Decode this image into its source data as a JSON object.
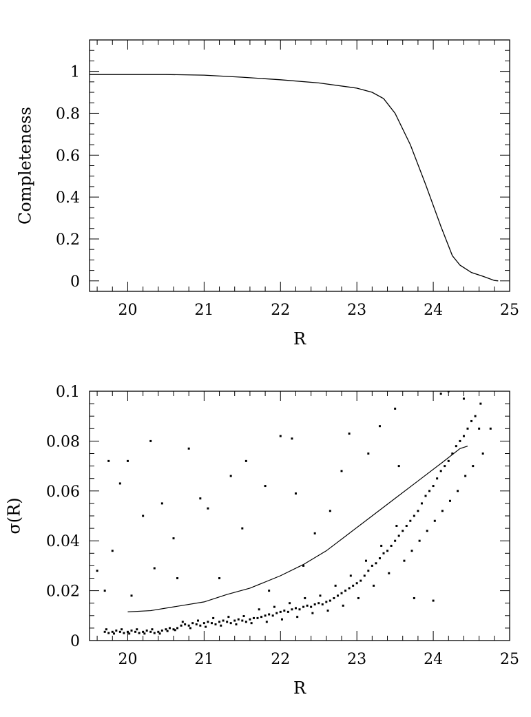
{
  "chart_data": [
    {
      "type": "line",
      "title": "",
      "xlabel": "R",
      "ylabel": "Completeness",
      "xlim": [
        19.5,
        25.0
      ],
      "ylim": [
        -0.05,
        1.15
      ],
      "xticks": [
        20,
        21,
        22,
        23,
        24,
        25
      ],
      "yticks": [
        0,
        0.2,
        0.4,
        0.6,
        0.8,
        1
      ],
      "xtick_labels": [
        "20",
        "21",
        "22",
        "23",
        "24",
        "25"
      ],
      "ytick_labels": [
        "0",
        "0.2",
        "0.4",
        "0.6",
        "0.8",
        "1"
      ],
      "grid": false,
      "series": [
        {
          "x": [
            19.5,
            20.0,
            20.5,
            21.0,
            21.5,
            22.0,
            22.5,
            23.0,
            23.2,
            23.35,
            23.5,
            23.7,
            23.9,
            24.1,
            24.25,
            24.35,
            24.5,
            24.65,
            24.8,
            24.85
          ],
          "y": [
            0.985,
            0.985,
            0.985,
            0.982,
            0.972,
            0.96,
            0.945,
            0.92,
            0.9,
            0.87,
            0.8,
            0.65,
            0.46,
            0.26,
            0.12,
            0.075,
            0.04,
            0.022,
            0.002,
            0.0
          ]
        }
      ]
    },
    {
      "type": "scatter",
      "title": "",
      "xlabel": "R",
      "ylabel": "σ(R)",
      "xlim": [
        19.5,
        25.0
      ],
      "ylim": [
        0.0,
        0.1
      ],
      "xticks": [
        20,
        21,
        22,
        23,
        24,
        25
      ],
      "yticks": [
        0,
        0.02,
        0.04,
        0.06,
        0.08,
        0.1
      ],
      "xtick_labels": [
        "20",
        "21",
        "22",
        "23",
        "24",
        "25"
      ],
      "ytick_labels": [
        "0",
        "0.02",
        "0.04",
        "0.06",
        "0.08",
        "0.1"
      ],
      "grid": false,
      "points": [
        [
          19.7,
          0.0035
        ],
        [
          19.75,
          0.003
        ],
        [
          19.8,
          0.0035
        ],
        [
          19.85,
          0.004
        ],
        [
          19.9,
          0.0035
        ],
        [
          19.95,
          0.003
        ],
        [
          20.0,
          0.0035
        ],
        [
          20.05,
          0.004
        ],
        [
          20.1,
          0.0035
        ],
        [
          20.15,
          0.003
        ],
        [
          20.2,
          0.0035
        ],
        [
          20.25,
          0.004
        ],
        [
          20.3,
          0.0035
        ],
        [
          20.35,
          0.003
        ],
        [
          20.4,
          0.0035
        ],
        [
          20.45,
          0.004
        ],
        [
          20.5,
          0.0045
        ],
        [
          20.55,
          0.005
        ],
        [
          20.6,
          0.0045
        ],
        [
          20.65,
          0.005
        ],
        [
          19.72,
          0.0045
        ],
        [
          19.82,
          0.0028
        ],
        [
          19.92,
          0.0045
        ],
        [
          20.02,
          0.0028
        ],
        [
          20.12,
          0.0045
        ],
        [
          20.22,
          0.0028
        ],
        [
          20.32,
          0.0045
        ],
        [
          20.42,
          0.0028
        ],
        [
          20.52,
          0.0038
        ],
        [
          20.62,
          0.0042
        ],
        [
          20.7,
          0.006
        ],
        [
          20.75,
          0.0065
        ],
        [
          20.8,
          0.006
        ],
        [
          20.85,
          0.007
        ],
        [
          20.9,
          0.0065
        ],
        [
          20.95,
          0.006
        ],
        [
          21.0,
          0.007
        ],
        [
          21.05,
          0.0075
        ],
        [
          21.1,
          0.007
        ],
        [
          21.15,
          0.0065
        ],
        [
          21.2,
          0.0075
        ],
        [
          21.25,
          0.008
        ],
        [
          21.3,
          0.0075
        ],
        [
          21.35,
          0.007
        ],
        [
          21.4,
          0.008
        ],
        [
          21.45,
          0.0085
        ],
        [
          21.5,
          0.008
        ],
        [
          21.55,
          0.0075
        ],
        [
          21.6,
          0.0085
        ],
        [
          21.65,
          0.009
        ],
        [
          20.72,
          0.0075
        ],
        [
          20.82,
          0.005
        ],
        [
          20.92,
          0.008
        ],
        [
          21.02,
          0.0055
        ],
        [
          21.12,
          0.009
        ],
        [
          21.22,
          0.006
        ],
        [
          21.32,
          0.0095
        ],
        [
          21.42,
          0.0065
        ],
        [
          21.52,
          0.0098
        ],
        [
          21.62,
          0.007
        ],
        [
          21.7,
          0.009
        ],
        [
          21.75,
          0.0095
        ],
        [
          21.8,
          0.01
        ],
        [
          21.85,
          0.0105
        ],
        [
          21.9,
          0.01
        ],
        [
          21.95,
          0.011
        ],
        [
          22.0,
          0.0115
        ],
        [
          22.05,
          0.012
        ],
        [
          22.1,
          0.0115
        ],
        [
          22.15,
          0.0125
        ],
        [
          22.2,
          0.013
        ],
        [
          22.25,
          0.0125
        ],
        [
          22.3,
          0.0135
        ],
        [
          22.35,
          0.014
        ],
        [
          22.4,
          0.0135
        ],
        [
          22.45,
          0.0145
        ],
        [
          22.5,
          0.015
        ],
        [
          22.55,
          0.0145
        ],
        [
          22.6,
          0.0155
        ],
        [
          22.65,
          0.016
        ],
        [
          21.72,
          0.0125
        ],
        [
          21.82,
          0.0075
        ],
        [
          21.92,
          0.0135
        ],
        [
          22.02,
          0.0085
        ],
        [
          22.12,
          0.015
        ],
        [
          22.22,
          0.0095
        ],
        [
          22.32,
          0.017
        ],
        [
          22.42,
          0.011
        ],
        [
          22.52,
          0.018
        ],
        [
          22.62,
          0.012
        ],
        [
          22.7,
          0.017
        ],
        [
          22.75,
          0.018
        ],
        [
          22.8,
          0.019
        ],
        [
          22.85,
          0.02
        ],
        [
          22.9,
          0.021
        ],
        [
          22.95,
          0.022
        ],
        [
          23.0,
          0.023
        ],
        [
          23.05,
          0.024
        ],
        [
          23.1,
          0.026
        ],
        [
          23.15,
          0.028
        ],
        [
          23.2,
          0.03
        ],
        [
          23.25,
          0.031
        ],
        [
          23.3,
          0.033
        ],
        [
          23.35,
          0.035
        ],
        [
          23.4,
          0.036
        ],
        [
          23.45,
          0.038
        ],
        [
          23.5,
          0.04
        ],
        [
          23.55,
          0.042
        ],
        [
          23.6,
          0.044
        ],
        [
          23.65,
          0.046
        ],
        [
          22.72,
          0.022
        ],
        [
          22.82,
          0.014
        ],
        [
          22.92,
          0.026
        ],
        [
          23.02,
          0.017
        ],
        [
          23.12,
          0.032
        ],
        [
          23.22,
          0.022
        ],
        [
          23.32,
          0.038
        ],
        [
          23.42,
          0.027
        ],
        [
          23.52,
          0.046
        ],
        [
          23.62,
          0.032
        ],
        [
          23.7,
          0.048
        ],
        [
          23.75,
          0.05
        ],
        [
          23.8,
          0.052
        ],
        [
          23.85,
          0.055
        ],
        [
          23.9,
          0.058
        ],
        [
          23.95,
          0.06
        ],
        [
          24.0,
          0.062
        ],
        [
          24.05,
          0.065
        ],
        [
          24.1,
          0.068
        ],
        [
          24.15,
          0.07
        ],
        [
          24.2,
          0.072
        ],
        [
          24.25,
          0.075
        ],
        [
          24.3,
          0.078
        ],
        [
          24.35,
          0.08
        ],
        [
          24.4,
          0.082
        ],
        [
          24.45,
          0.085
        ],
        [
          24.5,
          0.088
        ],
        [
          24.55,
          0.09
        ],
        [
          24.6,
          0.085
        ],
        [
          24.65,
          0.075
        ],
        [
          23.72,
          0.036
        ],
        [
          23.82,
          0.04
        ],
        [
          23.92,
          0.044
        ],
        [
          24.02,
          0.048
        ],
        [
          24.12,
          0.052
        ],
        [
          24.22,
          0.056
        ],
        [
          24.32,
          0.06
        ],
        [
          24.42,
          0.066
        ],
        [
          24.52,
          0.07
        ],
        [
          24.62,
          0.095
        ],
        [
          19.6,
          0.028
        ],
        [
          19.7,
          0.02
        ],
        [
          19.75,
          0.072
        ],
        [
          19.8,
          0.036
        ],
        [
          19.9,
          0.063
        ],
        [
          20.0,
          0.072
        ],
        [
          20.05,
          0.018
        ],
        [
          20.2,
          0.05
        ],
        [
          20.3,
          0.08
        ],
        [
          20.35,
          0.029
        ],
        [
          20.45,
          0.055
        ],
        [
          20.6,
          0.041
        ],
        [
          20.65,
          0.025
        ],
        [
          20.8,
          0.077
        ],
        [
          20.95,
          0.057
        ],
        [
          21.05,
          0.053
        ],
        [
          21.2,
          0.025
        ],
        [
          21.35,
          0.066
        ],
        [
          21.5,
          0.045
        ],
        [
          21.55,
          0.072
        ],
        [
          21.8,
          0.062
        ],
        [
          21.85,
          0.02
        ],
        [
          22.0,
          0.082
        ],
        [
          22.15,
          0.081
        ],
        [
          22.2,
          0.059
        ],
        [
          22.3,
          0.03
        ],
        [
          22.45,
          0.043
        ],
        [
          22.65,
          0.052
        ],
        [
          22.8,
          0.068
        ],
        [
          22.9,
          0.083
        ],
        [
          23.15,
          0.075
        ],
        [
          23.3,
          0.086
        ],
        [
          23.5,
          0.093
        ],
        [
          23.55,
          0.07
        ],
        [
          23.75,
          0.017
        ],
        [
          24.0,
          0.016
        ],
        [
          24.1,
          0.099
        ],
        [
          24.2,
          0.1
        ],
        [
          24.4,
          0.097
        ],
        [
          24.75,
          0.085
        ]
      ],
      "curve": {
        "x": [
          20.0,
          20.3,
          20.6,
          21.0,
          21.3,
          21.6,
          22.0,
          22.3,
          22.6,
          22.9,
          23.2,
          23.5,
          23.8,
          24.1,
          24.35,
          24.45
        ],
        "y": [
          0.0115,
          0.012,
          0.0135,
          0.0155,
          0.0185,
          0.021,
          0.026,
          0.0305,
          0.036,
          0.043,
          0.05,
          0.057,
          0.064,
          0.071,
          0.077,
          0.078
        ]
      }
    }
  ]
}
